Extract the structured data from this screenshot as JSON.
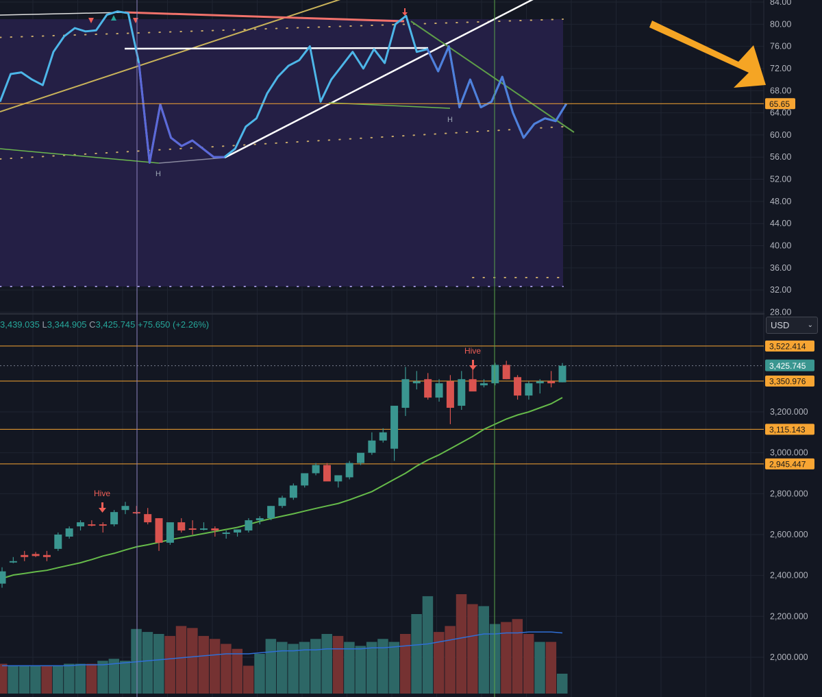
{
  "colors": {
    "background": "#131722",
    "rsi_band": "#241f45",
    "rsi_line": "#4db6e8",
    "rsi_line_low": "#5d68d8",
    "up": "#26a69a",
    "down": "#ef5350",
    "up_candle": "#3a9690",
    "down_candle": "#d9534f",
    "ma_line": "#66bb4a",
    "level_line": "#f7a533",
    "annotation_arrow": "#f5a524"
  },
  "ohlc_header": {
    "high": "3,439.035",
    "low_label": "L",
    "low": "3,344.905",
    "close_label": "C",
    "close": "3,425.745",
    "change": "+75.650 (+2.26%)"
  },
  "currency_select": {
    "value": "USD",
    "icon": "chevron-down-icon"
  },
  "rsi_panel": {
    "axis_ticks": [
      "84.00",
      "80.00",
      "76.00",
      "72.00",
      "68.00",
      "64.00",
      "60.00",
      "56.00",
      "52.00",
      "48.00",
      "44.00",
      "40.00",
      "36.00",
      "32.00",
      "28.00"
    ],
    "current_value_label": "65.65",
    "annotations": [
      "H",
      "H"
    ]
  },
  "price_panel": {
    "axis_ticks": [
      "3,200.000",
      "3,000.000",
      "2,800.000",
      "2,600.000",
      "2,400.000",
      "2,200.000",
      "2,000.000"
    ],
    "level_labels": [
      "3,522.414",
      "3,350.976",
      "3,115.143",
      "2,945.447"
    ],
    "last_price_label": "3,425.745",
    "signal_labels": [
      "Hive",
      "Hive"
    ]
  },
  "chart_data": [
    {
      "type": "line",
      "title": "",
      "ylim": [
        28,
        84
      ],
      "series": [
        {
          "values": [
            66,
            71,
            71.3,
            70,
            69,
            75,
            77.8,
            79.3,
            78.7,
            78.9,
            81.7,
            82.3,
            82,
            73,
            55,
            65.5,
            59.5,
            58,
            59,
            57.5,
            56,
            56,
            57.5,
            61.5,
            63,
            67.5,
            70.5,
            72.5,
            73.5,
            76,
            66,
            70,
            72.5,
            75,
            72,
            75.5,
            73,
            80,
            81.5,
            75,
            75.5,
            71.5,
            76,
            65,
            70,
            65,
            66,
            70.5,
            64,
            59.5,
            62,
            63,
            62.5,
            65.65
          ]
        }
      ],
      "horizontal_levels": [
        65.65
      ],
      "band_upper": 80.5,
      "band_lower": 58
    },
    {
      "type": "candlestick",
      "title": "",
      "ylim": [
        1950,
        3650
      ],
      "levels": [
        3522.414,
        3350.976,
        3115.143,
        2945.447
      ],
      "last_price": 3425.745,
      "series": [
        {
          "name": "OHLC",
          "values": [
            [
              2360,
              2440,
              2340,
              2420
            ],
            [
              2470,
              2490,
              2460,
              2470
            ],
            [
              2500,
              2520,
              2470,
              2490
            ],
            [
              2505,
              2515,
              2490,
              2495
            ],
            [
              2500,
              2520,
              2470,
              2490
            ],
            [
              2530,
              2610,
              2520,
              2600
            ],
            [
              2590,
              2640,
              2580,
              2630
            ],
            [
              2640,
              2670,
              2620,
              2660
            ],
            [
              2650,
              2670,
              2640,
              2645
            ],
            [
              2650,
              2660,
              2610,
              2645
            ],
            [
              2650,
              2720,
              2640,
              2710
            ],
            [
              2720,
              2760,
              2700,
              2740
            ],
            [
              2710,
              2740,
              2700,
              2705
            ],
            [
              2700,
              2730,
              2650,
              2660
            ],
            [
              2680,
              2680,
              2520,
              2560
            ],
            [
              2560,
              2660,
              2550,
              2660
            ],
            [
              2660,
              2680,
              2610,
              2620
            ],
            [
              2630,
              2670,
              2600,
              2625
            ],
            [
              2625,
              2660,
              2620,
              2630
            ],
            [
              2630,
              2640,
              2590,
              2620
            ],
            [
              2605,
              2620,
              2580,
              2610
            ],
            [
              2610,
              2620,
              2590,
              2625
            ],
            [
              2620,
              2680,
              2610,
              2670
            ],
            [
              2670,
              2690,
              2650,
              2680
            ],
            [
              2680,
              2740,
              2670,
              2740
            ],
            [
              2740,
              2790,
              2730,
              2780
            ],
            [
              2780,
              2850,
              2770,
              2840
            ],
            [
              2840,
              2900,
              2830,
              2900
            ],
            [
              2900,
              2950,
              2890,
              2940
            ],
            [
              2940,
              2950,
              2870,
              2860
            ],
            [
              2860,
              2880,
              2830,
              2890
            ],
            [
              2880,
              2960,
              2870,
              2950
            ],
            [
              2950,
              2990,
              2940,
              3000
            ],
            [
              3000,
              3100,
              2990,
              3060
            ],
            [
              3060,
              3120,
              3050,
              3100
            ],
            [
              3020,
              3120,
              2960,
              3230
            ],
            [
              3220,
              3420,
              3180,
              3360
            ],
            [
              3340,
              3400,
              3310,
              3350
            ],
            [
              3360,
              3390,
              3260,
              3270
            ],
            [
              3270,
              3360,
              3250,
              3340
            ],
            [
              3350,
              3380,
              3140,
              3220
            ],
            [
              3230,
              3400,
              3210,
              3360
            ],
            [
              3360,
              3410,
              3320,
              3300
            ],
            [
              3330,
              3360,
              3320,
              3340
            ],
            [
              3340,
              3440,
              3330,
              3430
            ],
            [
              3430,
              3450,
              3360,
              3360
            ],
            [
              3370,
              3380,
              3260,
              3280
            ],
            [
              3280,
              3350,
              3260,
              3340
            ],
            [
              3340,
              3360,
              3290,
              3350
            ],
            [
              3350,
              3400,
              3320,
              3340
            ],
            [
              3344.905,
              3439.035,
              3344.905,
              3425.745
            ]
          ]
        },
        {
          "name": "MA",
          "values": [
            2385,
            2402,
            2410,
            2418,
            2425,
            2438,
            2450,
            2462,
            2478,
            2495,
            2508,
            2525,
            2540,
            2550,
            2562,
            2575,
            2585,
            2595,
            2605,
            2615,
            2625,
            2635,
            2650,
            2665,
            2678,
            2690,
            2702,
            2715,
            2728,
            2740,
            2752,
            2770,
            2790,
            2810,
            2840,
            2870,
            2900,
            2935,
            2965,
            2990,
            3020,
            3050,
            3080,
            3115,
            3140,
            3165,
            3185,
            3200,
            3220,
            3240,
            3270
          ]
        }
      ]
    },
    {
      "type": "bar",
      "title": "",
      "series": [
        {
          "name": "Volume",
          "values": [
            30,
            28,
            28,
            28,
            28,
            28,
            30,
            30,
            30,
            33,
            35,
            33,
            65,
            62,
            60,
            58,
            68,
            66,
            58,
            55,
            50,
            45,
            28,
            40,
            55,
            52,
            50,
            52,
            55,
            60,
            58,
            52,
            48,
            52,
            55,
            52,
            60,
            80,
            98,
            62,
            68,
            100,
            90,
            88,
            70,
            72,
            75,
            60,
            52,
            52,
            20
          ],
          "direction": [
            "down",
            "up",
            "up",
            "up",
            "down",
            "up",
            "up",
            "up",
            "down",
            "up",
            "up",
            "up",
            "up",
            "up",
            "up",
            "down",
            "down",
            "down",
            "down",
            "down",
            "down",
            "down",
            "down",
            "up",
            "up",
            "up",
            "up",
            "up",
            "up",
            "up",
            "down",
            "up",
            "up",
            "up",
            "up",
            "up",
            "down",
            "up",
            "up",
            "down",
            "down",
            "down",
            "down",
            "up",
            "up",
            "down",
            "down",
            "down",
            "up",
            "down",
            "up"
          ]
        },
        {
          "name": "Volume MA",
          "values": [
            28,
            28,
            28,
            28,
            28,
            28,
            28,
            29,
            29,
            29,
            30,
            31,
            32,
            33,
            34,
            35,
            36,
            37,
            38,
            39,
            40,
            40,
            40,
            41,
            42,
            43,
            43,
            44,
            44,
            45,
            45,
            45,
            45,
            46,
            46,
            47,
            48,
            49,
            50,
            52,
            54,
            56,
            58,
            60,
            60,
            61,
            61,
            62,
            62,
            62,
            61
          ]
        }
      ]
    }
  ]
}
